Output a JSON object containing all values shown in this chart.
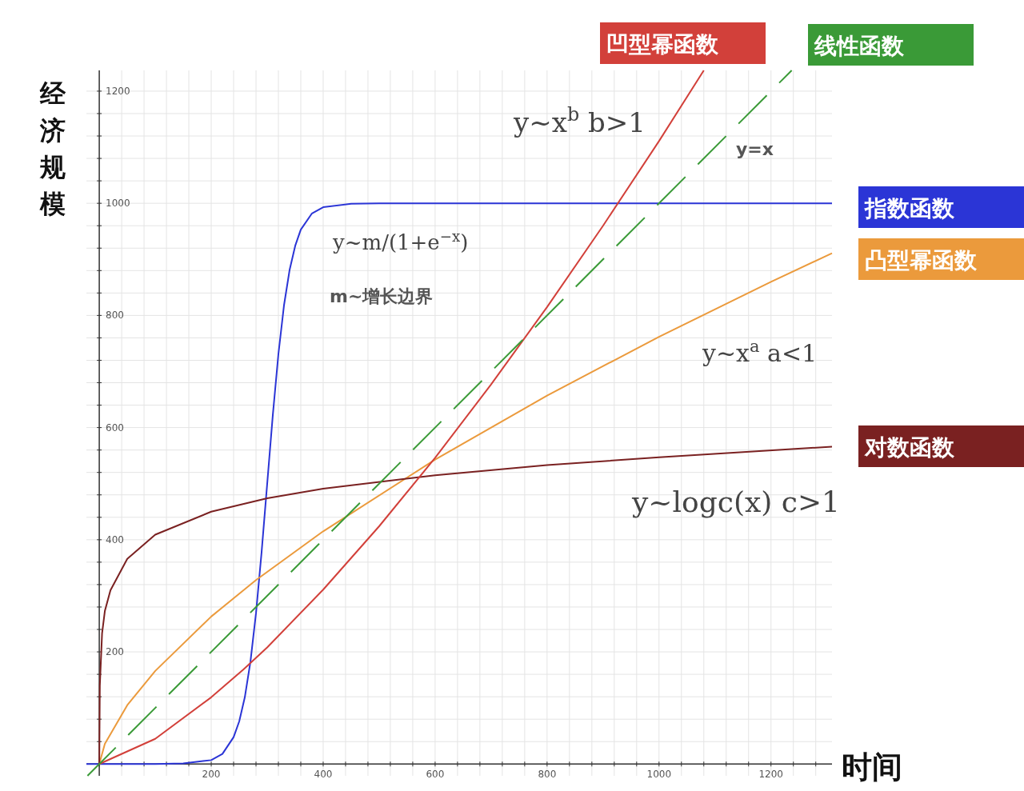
{
  "chart_data": {
    "type": "line",
    "xlabel": "时间",
    "ylabel": "经济规模",
    "xlim": [
      -23,
      1309
    ],
    "ylim": [
      -21,
      1237
    ],
    "xticks": [
      {
        "value": 0,
        "label": null
      },
      {
        "value": 40,
        "label": null
      },
      {
        "value": 80,
        "label": null
      },
      {
        "value": 120,
        "label": null
      },
      {
        "value": 160,
        "label": null
      },
      200,
      {
        "value": 240,
        "label": null
      },
      {
        "value": 280,
        "label": null
      },
      {
        "value": 320,
        "label": null
      },
      {
        "value": 360,
        "label": null
      },
      400,
      {
        "value": 440,
        "label": null
      },
      {
        "value": 480,
        "label": null
      },
      {
        "value": 520,
        "label": null
      },
      {
        "value": 560,
        "label": null
      },
      600,
      {
        "value": 640,
        "label": null
      },
      {
        "value": 680,
        "label": null
      },
      {
        "value": 720,
        "label": null
      },
      {
        "value": 760,
        "label": null
      },
      800,
      {
        "value": 840,
        "label": null
      },
      {
        "value": 880,
        "label": null
      },
      {
        "value": 920,
        "label": null
      },
      {
        "value": 960,
        "label": null
      },
      1000,
      {
        "value": 1040,
        "label": null
      },
      {
        "value": 1080,
        "label": null
      },
      {
        "value": 1120,
        "label": null
      },
      {
        "value": 1160,
        "label": null
      },
      1200,
      {
        "value": 1240,
        "label": null
      },
      {
        "value": 1280,
        "label": null
      }
    ],
    "yticks": [
      {
        "value": 0,
        "label": null
      },
      {
        "value": 40,
        "label": null
      },
      {
        "value": 80,
        "label": null
      },
      {
        "value": 120,
        "label": null
      },
      {
        "value": 160,
        "label": null
      },
      200,
      {
        "value": 240,
        "label": null
      },
      {
        "value": 280,
        "label": null
      },
      {
        "value": 320,
        "label": null
      },
      {
        "value": 360,
        "label": null
      },
      400,
      {
        "value": 440,
        "label": null
      },
      {
        "value": 480,
        "label": null
      },
      {
        "value": 520,
        "label": null
      },
      {
        "value": 560,
        "label": null
      },
      600,
      {
        "value": 640,
        "label": null
      },
      {
        "value": 680,
        "label": null
      },
      {
        "value": 720,
        "label": null
      },
      {
        "value": 760,
        "label": null
      },
      800,
      {
        "value": 840,
        "label": null
      },
      {
        "value": 880,
        "label": null
      },
      {
        "value": 920,
        "label": null
      },
      {
        "value": 960,
        "label": null
      },
      1000,
      {
        "value": 1040,
        "label": null
      },
      {
        "value": 1080,
        "label": null
      },
      {
        "value": 1120,
        "label": null
      },
      {
        "value": 1160,
        "label": null
      },
      1200
    ],
    "grid": true,
    "marker": "none",
    "series": [
      {
        "name": "指数函数",
        "color": "#2b35d6",
        "x": [
          -23,
          0,
          100,
          150,
          200,
          220,
          240,
          250,
          260,
          270,
          280,
          290,
          300,
          310,
          320,
          330,
          340,
          350,
          360,
          380,
          400,
          450,
          500,
          1309
        ],
        "values": [
          0,
          0,
          0,
          1,
          7,
          18,
          48,
          76,
          119,
          182,
          269,
          378,
          500,
          622,
          731,
          818,
          881,
          924,
          953,
          982,
          993,
          999,
          1000,
          1000
        ]
      },
      {
        "name": "凸型幂函数",
        "color": "#eb9a3c",
        "x": [
          0,
          10,
          50,
          100,
          200,
          280,
          400,
          600,
          800,
          1000,
          1200,
          1309
        ],
        "values": [
          0,
          36,
          105,
          166,
          263,
          328,
          415,
          543,
          657,
          762,
          860,
          911
        ]
      },
      {
        "name": "对数函数",
        "color": "#7a2121",
        "x": [
          0,
          1,
          5,
          10,
          20,
          50,
          100,
          200,
          300,
          400,
          600,
          800,
          1000,
          1309
        ],
        "values": [
          0,
          140,
          233,
          273,
          310,
          366,
          409,
          450,
          474,
          491,
          515,
          533,
          547,
          566
        ]
      },
      {
        "name": "凹型幂函数",
        "color": "#d2403a",
        "x": [
          0,
          100,
          200,
          258,
          300,
          400,
          500,
          600,
          700,
          800,
          900,
          1000,
          1080
        ],
        "values": [
          0,
          45,
          119,
          169,
          208,
          311,
          424,
          546,
          677,
          815,
          960,
          1111,
          1237
        ]
      },
      {
        "name": "线性函数",
        "color": "#3a9a37",
        "line_style": "dashed",
        "x": [
          -21,
          1237
        ],
        "values": [
          -21,
          1237
        ]
      }
    ],
    "annotations": [
      "y~x$^{b}$  b>1",
      "y=x",
      "y~m/(1+e$^{−x}$)",
      "m~增长边界",
      "y~x$^{a}$  a<1",
      "y~logc(x)  c>1"
    ]
  }
}
